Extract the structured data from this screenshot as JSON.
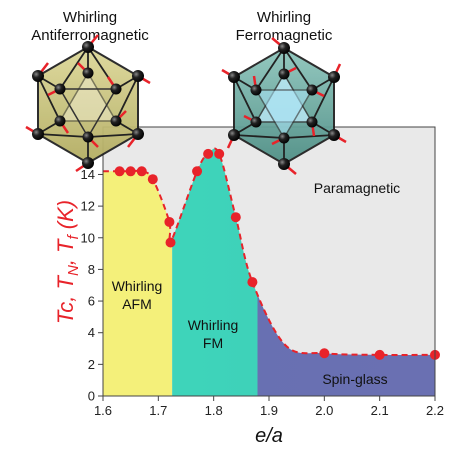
{
  "figure_labels": {
    "afm_structure_title_line1": "Whirling",
    "afm_structure_title_line2": "Antiferromagnetic",
    "fm_structure_title_line1": "Whirling",
    "fm_structure_title_line2": "Ferromagnetic"
  },
  "chart_data": {
    "type": "scatter",
    "xlabel": "e/a",
    "ylabel": "Tc, TN, Tf (K)",
    "xlim": [
      1.6,
      2.2
    ],
    "ylim": [
      0,
      17
    ],
    "x_ticks": [
      "1.6",
      "1.7",
      "1.8",
      "1.9",
      "2.0",
      "2.1",
      "2.2"
    ],
    "y_ticks": [
      "0",
      "2",
      "4",
      "6",
      "8",
      "10",
      "12",
      "14"
    ],
    "grid": false,
    "series": [
      {
        "marker_color": "#e8232a",
        "x": [
          1.63,
          1.65,
          1.67,
          1.69,
          1.72,
          1.722,
          1.77,
          1.79,
          1.81,
          1.84,
          1.87,
          2.0,
          2.1,
          2.2
        ],
        "y": [
          14.2,
          14.2,
          14.2,
          13.7,
          11.0,
          9.7,
          14.2,
          15.3,
          15.3,
          11.3,
          7.2,
          2.7,
          2.6,
          2.6
        ]
      }
    ],
    "phase_regions": [
      {
        "label_line1": "Whirling",
        "label_line2": "AFM",
        "color": "#f4f07a"
      },
      {
        "label_line1": "Whirling",
        "label_line2": "FM",
        "color": "#3fd6bb"
      },
      {
        "label_line1": "Spin-glass",
        "color": "#6a70b2"
      },
      {
        "label_line1": "Paramagnetic",
        "color": "#e9e9e9"
      }
    ]
  }
}
